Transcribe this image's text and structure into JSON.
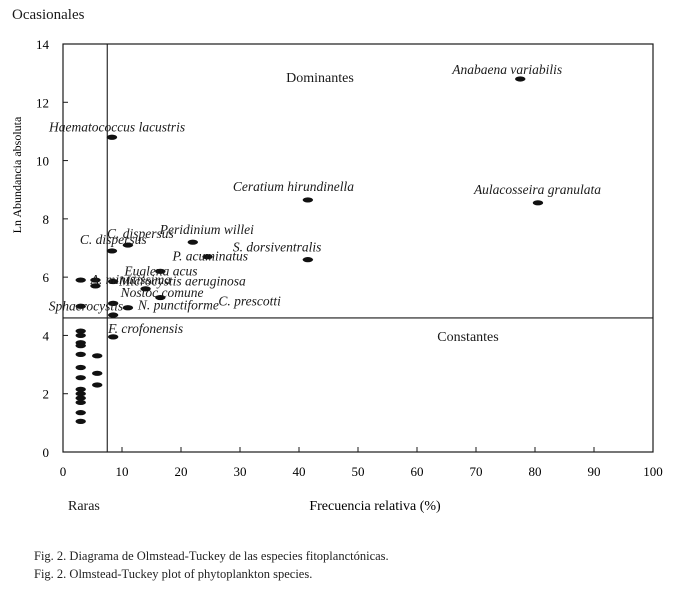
{
  "chart_data": {
    "type": "scatter",
    "xlabel": "Frecuencia relativa (%)",
    "ylabel": "Ln Abundancia absoluta",
    "xlim": [
      0,
      100
    ],
    "ylim": [
      0,
      14
    ],
    "x_ticks": [
      0,
      10,
      20,
      30,
      40,
      50,
      60,
      70,
      80,
      90,
      100
    ],
    "y_ticks": [
      0,
      2,
      4,
      6,
      8,
      10,
      12,
      14
    ],
    "grid": false,
    "divider_x": 7.5,
    "divider_y": 4.6,
    "quadrant_labels": {
      "top_left": "Ocasionales",
      "top_right": "Dominantes",
      "bottom_left": "Raras",
      "bottom_right": "Constantes"
    },
    "labeled_points": [
      {
        "label": "Anabaena variabilis",
        "x": 77.5,
        "y": 12.8
      },
      {
        "label": "Haematococcus lacustris",
        "x": 8.3,
        "y": 10.8
      },
      {
        "label": "Ceratium hirundinella",
        "x": 41.5,
        "y": 8.65
      },
      {
        "label": "Aulacosseira granulata",
        "x": 80.5,
        "y": 8.55
      },
      {
        "label": "C. dispersus",
        "x": 8.3,
        "y": 6.9
      },
      {
        "label": "C. dispersus",
        "x": 11.0,
        "y": 7.1
      },
      {
        "label": "Peridinium willei",
        "x": 22.0,
        "y": 7.2
      },
      {
        "label": "P. acuminatus",
        "x": 24.5,
        "y": 6.7
      },
      {
        "label": "S. dorsiventralis",
        "x": 41.5,
        "y": 6.6
      },
      {
        "label": "Euglena acus",
        "x": 16.5,
        "y": 6.2
      },
      {
        "label": "A. minutissima",
        "x": 3.0,
        "y": 5.9
      },
      {
        "label": "Microcystis aeruginosa",
        "x": 8.5,
        "y": 5.85
      },
      {
        "label": "Sphaerocystis",
        "x": 3.0,
        "y": 5.0
      },
      {
        "label": "Nostoc comune",
        "x": 14.0,
        "y": 5.6
      },
      {
        "label": "C. prescotti",
        "x": 16.5,
        "y": 5.3
      },
      {
        "label": "N. punctiforme",
        "x": 11.0,
        "y": 4.95
      },
      {
        "label": "F. crofonensis",
        "x": 8.5,
        "y": 3.95
      }
    ],
    "unlabeled_points": [
      {
        "x": 5.5,
        "y": 5.9
      },
      {
        "x": 5.5,
        "y": 5.7
      },
      {
        "x": 8.5,
        "y": 5.1
      },
      {
        "x": 8.5,
        "y": 4.7
      },
      {
        "x": 3.0,
        "y": 4.15
      },
      {
        "x": 3.0,
        "y": 4.0
      },
      {
        "x": 3.0,
        "y": 3.75
      },
      {
        "x": 3.0,
        "y": 3.65
      },
      {
        "x": 3.0,
        "y": 3.35
      },
      {
        "x": 3.0,
        "y": 2.9
      },
      {
        "x": 3.0,
        "y": 2.55
      },
      {
        "x": 3.0,
        "y": 2.15
      },
      {
        "x": 3.0,
        "y": 2.0
      },
      {
        "x": 3.0,
        "y": 1.85
      },
      {
        "x": 3.0,
        "y": 1.7
      },
      {
        "x": 3.0,
        "y": 1.35
      },
      {
        "x": 3.0,
        "y": 1.05
      },
      {
        "x": 5.8,
        "y": 3.3
      },
      {
        "x": 5.8,
        "y": 2.7
      },
      {
        "x": 5.8,
        "y": 2.3
      }
    ]
  },
  "captions": {
    "spanish": "Fig. 2. Diagrama de Olmstead-Tuckey de las especies fitoplanctónicas.",
    "english": "Fig. 2. Olmstead-Tuckey plot of phytoplankton species."
  }
}
